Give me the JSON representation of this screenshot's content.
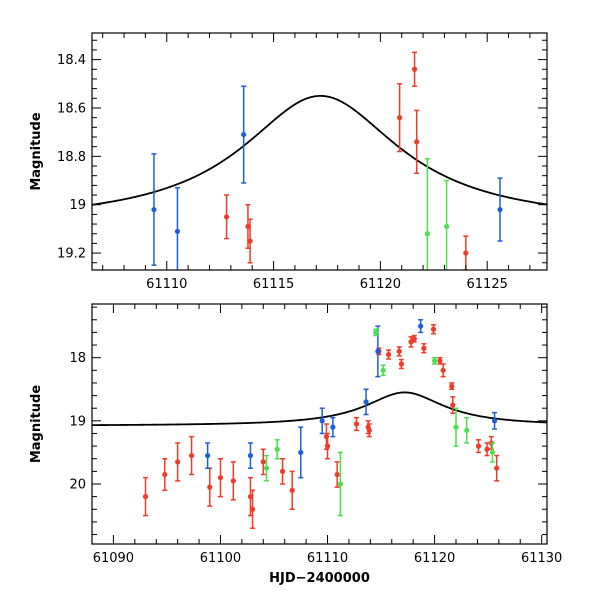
{
  "colors": {
    "red": "#f03a2a",
    "blue": "#1f5fd6",
    "green": "#4ce04c",
    "model": "#000000"
  },
  "chart_data": [
    {
      "type": "scatter",
      "title": "",
      "xlabel": "",
      "ylabel": "Magnitude",
      "xlim": [
        61106.5,
        61127.8
      ],
      "ylim": [
        19.27,
        18.29
      ],
      "xticks": [
        61110,
        61115,
        61120,
        61125
      ],
      "xtick_labels": [
        "61110",
        "61115",
        "61120",
        "61125"
      ],
      "yticks": [
        18.4,
        18.6,
        18.8,
        19,
        19.2
      ],
      "ytick_labels": [
        "18.4",
        "18.6",
        "18.8",
        "19",
        "19.2"
      ],
      "model": {
        "peak_x": 61117.2,
        "peak_mag": 18.55,
        "base_mag": 19.08,
        "width": 4.5
      },
      "series": [
        {
          "name": "red",
          "color_key": "red",
          "points": [
            {
              "x": 61112.8,
              "y": 19.05,
              "err": 0.09
            },
            {
              "x": 61113.8,
              "y": 19.09,
              "err": 0.09
            },
            {
              "x": 61113.9,
              "y": 19.15,
              "err": 0.09
            },
            {
              "x": 61120.9,
              "y": 18.64,
              "err": 0.14
            },
            {
              "x": 61121.6,
              "y": 18.44,
              "err": 0.07
            },
            {
              "x": 61121.7,
              "y": 18.74,
              "err": 0.13
            },
            {
              "x": 61124.0,
              "y": 19.2,
              "err": 0.07
            }
          ]
        },
        {
          "name": "blue",
          "color_key": "blue",
          "points": [
            {
              "x": 61109.4,
              "y": 19.02,
              "err": 0.23
            },
            {
              "x": 61110.5,
              "y": 19.11,
              "err": 0.18
            },
            {
              "x": 61113.6,
              "y": 18.71,
              "err": 0.2
            },
            {
              "x": 61125.6,
              "y": 19.02,
              "err": 0.13
            }
          ]
        },
        {
          "name": "green",
          "color_key": "green",
          "points": [
            {
              "x": 61122.2,
              "y": 19.12,
              "err": 0.31
            },
            {
              "x": 61123.1,
              "y": 19.09,
              "err": 0.19
            }
          ]
        }
      ]
    },
    {
      "type": "scatter",
      "title": "",
      "xlabel": "HJD−2400000",
      "ylabel": "Magnitude",
      "xlim": [
        61088,
        61130.5
      ],
      "ylim": [
        20.95,
        17.15
      ],
      "xticks": [
        61090,
        61100,
        61110,
        61120,
        61130
      ],
      "xtick_labels": [
        "61090",
        "61100",
        "61110",
        "61120",
        "61130"
      ],
      "yticks": [
        18,
        19,
        20
      ],
      "ytick_labels": [
        "18",
        "19",
        "20"
      ],
      "model": {
        "peak_x": 61117.2,
        "peak_mag": 18.55,
        "base_mag": 19.08,
        "width": 4.5
      },
      "series": [
        {
          "name": "red",
          "color_key": "red",
          "points": [
            {
              "x": 61093.0,
              "y": 20.2,
              "err": 0.3
            },
            {
              "x": 61094.8,
              "y": 19.85,
              "err": 0.25
            },
            {
              "x": 61096.0,
              "y": 19.65,
              "err": 0.3
            },
            {
              "x": 61097.3,
              "y": 19.55,
              "err": 0.3
            },
            {
              "x": 61099.0,
              "y": 20.05,
              "err": 0.3
            },
            {
              "x": 61100.0,
              "y": 19.9,
              "err": 0.3
            },
            {
              "x": 61101.2,
              "y": 19.95,
              "err": 0.3
            },
            {
              "x": 61102.8,
              "y": 20.2,
              "err": 0.3
            },
            {
              "x": 61103.0,
              "y": 20.4,
              "err": 0.3
            },
            {
              "x": 61104.0,
              "y": 19.65,
              "err": 0.2
            },
            {
              "x": 61105.8,
              "y": 19.8,
              "err": 0.2
            },
            {
              "x": 61106.7,
              "y": 20.1,
              "err": 0.3
            },
            {
              "x": 61109.9,
              "y": 19.25,
              "err": 0.2
            },
            {
              "x": 61110.0,
              "y": 19.4,
              "err": 0.2
            },
            {
              "x": 61110.9,
              "y": 19.85,
              "err": 0.2
            },
            {
              "x": 61112.7,
              "y": 19.05,
              "err": 0.1
            },
            {
              "x": 61113.8,
              "y": 19.1,
              "err": 0.1
            },
            {
              "x": 61113.9,
              "y": 19.15,
              "err": 0.1
            },
            {
              "x": 61114.8,
              "y": 17.9,
              "err": 0.05
            },
            {
              "x": 61115.7,
              "y": 17.95,
              "err": 0.07
            },
            {
              "x": 61116.7,
              "y": 17.9,
              "err": 0.07
            },
            {
              "x": 61116.9,
              "y": 18.1,
              "err": 0.07
            },
            {
              "x": 61117.8,
              "y": 17.75,
              "err": 0.08
            },
            {
              "x": 61118.1,
              "y": 17.7,
              "err": 0.05
            },
            {
              "x": 61119.0,
              "y": 17.85,
              "err": 0.07
            },
            {
              "x": 61119.9,
              "y": 17.55,
              "err": 0.07
            },
            {
              "x": 61120.5,
              "y": 18.05,
              "err": 0.05
            },
            {
              "x": 61120.8,
              "y": 18.2,
              "err": 0.1
            },
            {
              "x": 61121.6,
              "y": 18.45,
              "err": 0.05
            },
            {
              "x": 61121.7,
              "y": 18.75,
              "err": 0.13
            },
            {
              "x": 61124.1,
              "y": 19.4,
              "err": 0.1
            },
            {
              "x": 61124.9,
              "y": 19.45,
              "err": 0.1
            },
            {
              "x": 61125.3,
              "y": 19.35,
              "err": 0.1
            },
            {
              "x": 61125.8,
              "y": 19.75,
              "err": 0.2
            }
          ]
        },
        {
          "name": "blue",
          "color_key": "blue",
          "points": [
            {
              "x": 61098.8,
              "y": 19.55,
              "err": 0.2
            },
            {
              "x": 61102.8,
              "y": 19.55,
              "err": 0.2
            },
            {
              "x": 61107.5,
              "y": 19.5,
              "err": 0.4
            },
            {
              "x": 61109.5,
              "y": 19.0,
              "err": 0.2
            },
            {
              "x": 61110.5,
              "y": 19.1,
              "err": 0.15
            },
            {
              "x": 61113.6,
              "y": 18.7,
              "err": 0.2
            },
            {
              "x": 61114.7,
              "y": 17.9,
              "err": 0.4
            },
            {
              "x": 61118.7,
              "y": 17.5,
              "err": 0.1
            },
            {
              "x": 61125.6,
              "y": 19.0,
              "err": 0.13
            }
          ]
        },
        {
          "name": "green",
          "color_key": "green",
          "points": [
            {
              "x": 61104.3,
              "y": 19.75,
              "err": 0.2
            },
            {
              "x": 61105.3,
              "y": 19.45,
              "err": 0.15
            },
            {
              "x": 61111.2,
              "y": 20.0,
              "err": 0.5
            },
            {
              "x": 61114.5,
              "y": 17.6,
              "err": 0.05
            },
            {
              "x": 61115.2,
              "y": 18.2,
              "err": 0.08
            },
            {
              "x": 61120.0,
              "y": 18.05,
              "err": 0.05
            },
            {
              "x": 61122.0,
              "y": 19.1,
              "err": 0.3
            },
            {
              "x": 61123.0,
              "y": 19.15,
              "err": 0.2
            },
            {
              "x": 61125.4,
              "y": 19.5,
              "err": 0.15
            }
          ]
        }
      ]
    }
  ]
}
